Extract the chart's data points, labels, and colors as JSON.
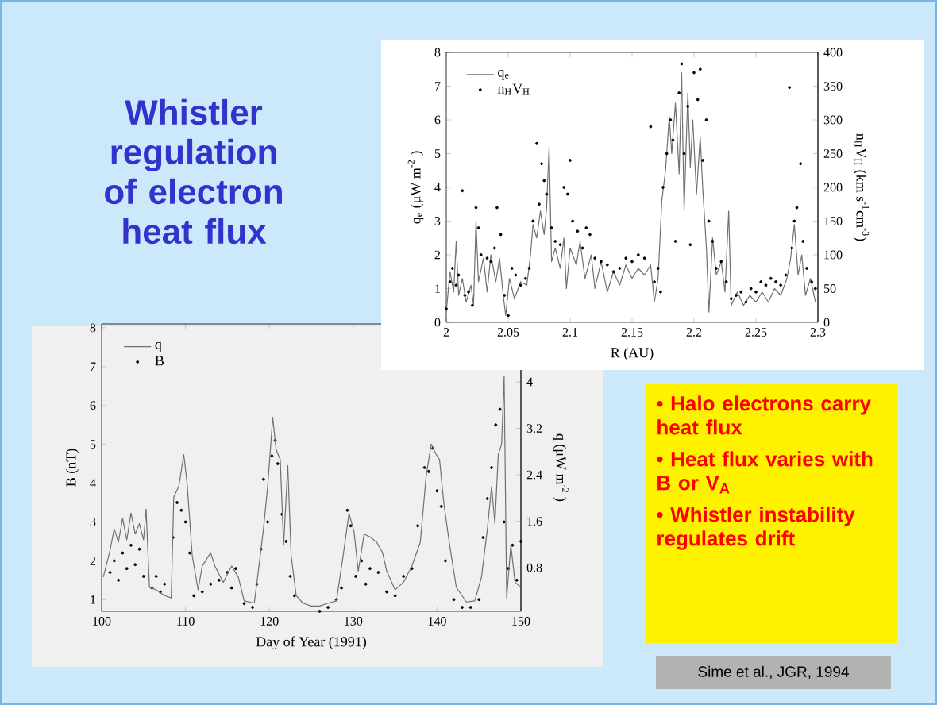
{
  "chart_data": [
    {
      "type": "other",
      "title": "Whistler regulation of electron heat flux",
      "annotations": [
        "• Halo electrons carry heat flux",
        "• Heat flux varies with B or V$_{A}$",
        "• Whistler instability regulates drift",
        "Sime et al., JGR, 1994"
      ]
    },
    {
      "type": "line",
      "xlabel": "R (AU)",
      "ylabel": "q$_{e}$ (μW m$^{-2}$ )",
      "y2label": "n$_{H}$V$_{H}$ (km s$^{-1}$cm$^{-3}$)",
      "xlim": [
        2,
        2.3
      ],
      "xticks": [
        2,
        2.05,
        2.1,
        2.15,
        2.2,
        2.25,
        2.3
      ],
      "ylim": [
        0,
        8
      ],
      "yticks": [
        0,
        1,
        2,
        3,
        4,
        5,
        6,
        7,
        8
      ],
      "y2lim": [
        0,
        400
      ],
      "y2ticks": [
        0,
        50,
        100,
        150,
        200,
        250,
        300,
        350,
        400
      ],
      "legend": "top left",
      "series": [
        {
          "name": "q$_{e}$",
          "color": "#707070",
          "x": [
            2.0,
            2.003,
            2.006,
            2.008,
            2.01,
            2.013,
            2.016,
            2.02,
            2.022,
            2.024,
            2.026,
            2.03,
            2.033,
            2.036,
            2.04,
            2.043,
            2.046,
            2.048,
            2.051,
            2.055,
            2.06,
            2.065,
            2.068,
            2.07,
            2.073,
            2.076,
            2.079,
            2.081,
            2.083,
            2.085,
            2.088,
            2.092,
            2.095,
            2.097,
            2.1,
            2.105,
            2.108,
            2.112,
            2.117,
            2.12,
            2.125,
            2.13,
            2.135,
            2.14,
            2.145,
            2.15,
            2.155,
            2.16,
            2.165,
            2.168,
            2.171,
            2.174,
            2.177,
            2.18,
            2.182,
            2.185,
            2.188,
            2.19,
            2.192,
            2.195,
            2.197,
            2.199,
            2.202,
            2.205,
            2.207,
            2.21,
            2.212,
            2.215,
            2.218,
            2.222,
            2.225,
            2.228,
            2.23,
            2.235,
            2.24,
            2.245,
            2.25,
            2.255,
            2.26,
            2.265,
            2.27,
            2.275,
            2.278,
            2.281,
            2.284,
            2.287,
            2.29,
            2.294,
            2.298
          ],
          "values": [
            0.3,
            1.5,
            0.9,
            2.4,
            0.8,
            1.3,
            0.6,
            1.1,
            0.5,
            3.0,
            1.2,
            1.9,
            0.9,
            2.0,
            1.2,
            1.9,
            0.8,
            0.2,
            1.3,
            0.7,
            1.2,
            1.1,
            2.0,
            2.9,
            2.5,
            3.3,
            2.6,
            3.4,
            5.2,
            1.8,
            2.2,
            1.6,
            2.5,
            1.0,
            2.2,
            1.7,
            2.4,
            1.3,
            2.0,
            1.0,
            1.8,
            0.9,
            1.5,
            1.1,
            1.7,
            1.3,
            1.6,
            1.4,
            1.7,
            0.6,
            1.3,
            3.6,
            4.5,
            6.1,
            5.0,
            6.5,
            4.4,
            7.4,
            3.3,
            6.8,
            4.6,
            6.0,
            3.8,
            5.5,
            4.0,
            2.2,
            0.3,
            2.5,
            1.4,
            1.8,
            0.9,
            3.3,
            0.5,
            0.9,
            0.5,
            0.8,
            0.6,
            0.9,
            0.6,
            1.0,
            0.8,
            1.3,
            1.9,
            2.9,
            1.4,
            2.0,
            0.8,
            1.3,
            0.6
          ]
        },
        {
          "name": "n$_{H}$V$_{H}$",
          "type": "scatter",
          "axis": "y2",
          "color": "#000000",
          "x": [
            2.0,
            2.003,
            2.005,
            2.008,
            2.01,
            2.013,
            2.015,
            2.018,
            2.021,
            2.024,
            2.026,
            2.028,
            2.033,
            2.036,
            2.039,
            2.041,
            2.044,
            2.047,
            2.05,
            2.053,
            2.056,
            2.06,
            2.064,
            2.067,
            2.07,
            2.073,
            2.075,
            2.077,
            2.079,
            2.081,
            2.085,
            2.088,
            2.092,
            2.095,
            2.098,
            2.1,
            2.102,
            2.106,
            2.11,
            2.113,
            2.116,
            2.12,
            2.125,
            2.13,
            2.135,
            2.14,
            2.145,
            2.15,
            2.155,
            2.16,
            2.165,
            2.168,
            2.171,
            2.173,
            2.175,
            2.178,
            2.181,
            2.183,
            2.185,
            2.188,
            2.19,
            2.192,
            2.195,
            2.197,
            2.2,
            2.203,
            2.205,
            2.207,
            2.21,
            2.212,
            2.215,
            2.218,
            2.222,
            2.226,
            2.23,
            2.234,
            2.238,
            2.242,
            2.246,
            2.25,
            2.254,
            2.258,
            2.262,
            2.266,
            2.27,
            2.274,
            2.277,
            2.279,
            2.281,
            2.283,
            2.286,
            2.288,
            2.291,
            2.295,
            2.298
          ],
          "values": [
            20,
            60,
            80,
            55,
            70,
            195,
            40,
            45,
            25,
            170,
            140,
            100,
            95,
            90,
            110,
            170,
            130,
            40,
            10,
            80,
            70,
            55,
            65,
            80,
            150,
            265,
            175,
            235,
            210,
            190,
            140,
            120,
            115,
            200,
            190,
            240,
            150,
            135,
            110,
            140,
            130,
            95,
            90,
            85,
            75,
            80,
            95,
            90,
            100,
            95,
            290,
            60,
            80,
            45,
            200,
            250,
            300,
            270,
            120,
            340,
            383,
            250,
            320,
            115,
            370,
            330,
            375,
            240,
            300,
            150,
            120,
            80,
            90,
            60,
            35,
            40,
            45,
            30,
            50,
            45,
            60,
            55,
            65,
            60,
            55,
            70,
            348,
            110,
            150,
            170,
            235,
            120,
            80,
            60,
            50
          ]
        }
      ]
    },
    {
      "type": "line",
      "xlabel": "Day of Year (1991)",
      "ylabel": "B (nT)",
      "y2label": "q (μW m$^{-2}$ )",
      "xlim": [
        100,
        150
      ],
      "xticks": [
        100,
        110,
        120,
        130,
        140,
        150
      ],
      "ylim": [
        0.7,
        8.1
      ],
      "yticks": [
        1,
        2,
        3,
        4,
        5,
        6,
        7,
        8
      ],
      "y2lim": [
        0.05,
        5.0
      ],
      "y2ticks": [
        0.8,
        1.6,
        2.4,
        3.2,
        4
      ],
      "legend": "top left",
      "series": [
        {
          "name": "q",
          "color": "#707070",
          "axis": "y2",
          "x": [
            100.2,
            101,
            101.5,
            102,
            102.5,
            103,
            103.5,
            104,
            104.5,
            105,
            105.3,
            105.7,
            106.5,
            107.5,
            108.3,
            108.6,
            109.2,
            109.8,
            110.2,
            110.8,
            111.5,
            112,
            113,
            113.5,
            114.5,
            115.5,
            116.3,
            117,
            118.2,
            118.6,
            119.3,
            119.8,
            120.4,
            120.8,
            121.3,
            121.7,
            122.2,
            122.6,
            123.2,
            124,
            125,
            126,
            127,
            128,
            128.8,
            129.5,
            130.1,
            130.6,
            131.3,
            132,
            132.8,
            133.5,
            134,
            135,
            136,
            137,
            138,
            138.7,
            139.3,
            139.9,
            140.3,
            140.8,
            141.5,
            142.3,
            143.5,
            144.5,
            145.3,
            146,
            146.5,
            146.9,
            147.3,
            147.7,
            148,
            148.3,
            148.8,
            149.3,
            150
          ],
          "values": [
            0.64,
            1.1,
            1.47,
            1.24,
            1.65,
            1.28,
            1.74,
            1.38,
            1.56,
            1.28,
            1.81,
            0.46,
            0.42,
            0.32,
            0.28,
            2.02,
            2.2,
            2.75,
            2.24,
            1.01,
            0.42,
            0.83,
            1.06,
            0.83,
            0.55,
            0.83,
            0.64,
            0.23,
            0.19,
            0.64,
            1.47,
            2.2,
            3.39,
            2.84,
            2.66,
            1.19,
            2.56,
            1.01,
            0.32,
            0.19,
            0.14,
            0.14,
            0.19,
            0.23,
            1.01,
            1.74,
            1.42,
            0.74,
            1.38,
            1.33,
            1.24,
            1.06,
            0.74,
            0.42,
            0.55,
            0.83,
            1.24,
            2.38,
            2.93,
            2.75,
            2.66,
            1.92,
            1.19,
            0.46,
            0.21,
            0.23,
            0.64,
            1.47,
            2.2,
            1.56,
            2.75,
            2.93,
            4.1,
            0.28,
            1.19,
            0.55,
            0.46
          ]
        },
        {
          "name": "B",
          "type": "scatter",
          "color": "#000000",
          "x": [
            101,
            101.5,
            102,
            102.5,
            103,
            103.5,
            104,
            104.5,
            105,
            106,
            106.5,
            107,
            107.5,
            108.5,
            109,
            109.5,
            110,
            110.5,
            111,
            112,
            113,
            114,
            115,
            115.5,
            116,
            117,
            118,
            118.5,
            119,
            119.3,
            119.8,
            120.3,
            120.7,
            121,
            121.5,
            122,
            122.5,
            123,
            126,
            127,
            128,
            128.6,
            129.3,
            129.7,
            130.3,
            131,
            131.5,
            132,
            133,
            134,
            135,
            136,
            137,
            137.7,
            138.5,
            139,
            139.5,
            140,
            140.5,
            141,
            142,
            143,
            144,
            145,
            145.5,
            146,
            146.5,
            147,
            147.5,
            148,
            148.5,
            149,
            149.5,
            150
          ],
          "values": [
            1.7,
            2.0,
            1.5,
            2.2,
            1.8,
            2.4,
            1.9,
            2.3,
            1.6,
            1.3,
            1.6,
            1.2,
            1.4,
            2.6,
            3.5,
            3.3,
            3.0,
            2.2,
            1.1,
            1.2,
            1.4,
            1.5,
            1.7,
            1.3,
            1.8,
            0.9,
            0.8,
            1.4,
            2.3,
            4.1,
            3.0,
            4.7,
            5.1,
            4.5,
            3.2,
            2.5,
            1.6,
            1.1,
            0.7,
            0.8,
            1.0,
            1.3,
            3.3,
            2.9,
            1.6,
            2.0,
            1.4,
            1.8,
            1.7,
            1.2,
            1.1,
            1.6,
            1.8,
            2.9,
            4.4,
            4.3,
            4.9,
            3.8,
            3.4,
            2.0,
            1.0,
            0.8,
            0.8,
            1.0,
            2.6,
            3.6,
            4.4,
            5.5,
            5.9,
            3.0,
            1.8,
            2.4,
            1.5,
            2.5
          ]
        }
      ]
    }
  ]
}
